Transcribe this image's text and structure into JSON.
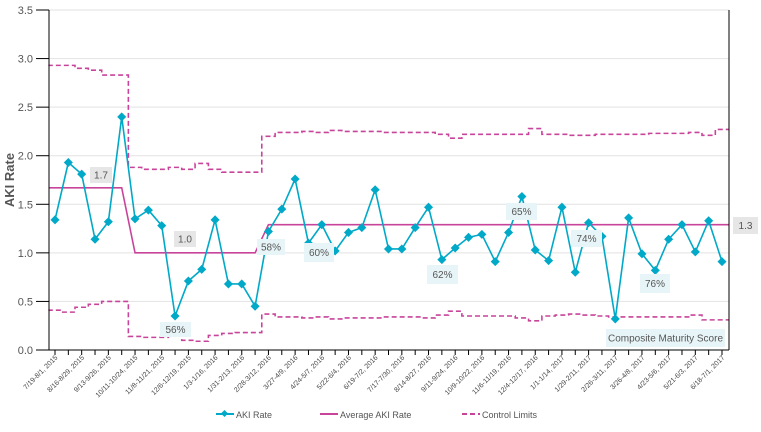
{
  "chart_data": {
    "type": "line",
    "title": "",
    "xlabel": "",
    "ylabel": "AKI Rate",
    "ylim": [
      0,
      3.5
    ],
    "yticks": [
      "0.0",
      "0.5",
      "1.0",
      "1.5",
      "2.0",
      "2.5",
      "3.0",
      "3.5"
    ],
    "grid": true,
    "legend_position": "bottom",
    "x_tick_labels": [
      "7/19-8/1, 2015",
      "8/16-8/29, 2015",
      "9/13-9/26, 2015",
      "10/11-10/24, 2015",
      "11/8-11/21, 2015",
      "12/6-12/19, 2015",
      "1/3-1/16, 2016",
      "1/31-2/13, 2016",
      "2/28-3/12, 2016",
      "3/27-4/9, 2016",
      "4/24-5/7, 2016",
      "5/22-6/4, 2016",
      "6/19-7/2, 2016",
      "7/17-7/30, 2016",
      "8/14-8/27, 2016",
      "9/11-9/24, 2016",
      "10/9-10/22, 2016",
      "11/6-11/19, 2016",
      "12/4-12/17, 2016",
      "1/1-1/14, 2017",
      "1/29-2/11, 2017",
      "2/26-3/11, 2017",
      "3/26-4/8, 2017",
      "4/23-5/6, 2017",
      "5/21-6/3, 2017",
      "6/18-7/1, 2017"
    ],
    "series": [
      {
        "name": "AKI Rate",
        "color": "#00a9c8",
        "style": "line-diamond",
        "values": [
          1.34,
          1.93,
          1.81,
          1.14,
          1.32,
          2.4,
          1.35,
          1.44,
          1.28,
          0.35,
          0.71,
          0.83,
          1.34,
          0.68,
          0.68,
          0.45,
          1.22,
          1.45,
          1.76,
          1.1,
          1.29,
          1.02,
          1.21,
          1.26,
          1.65,
          1.04,
          1.04,
          1.26,
          1.47,
          0.93,
          1.05,
          1.16,
          1.19,
          0.91,
          1.21,
          1.58,
          1.03,
          0.92,
          1.47,
          0.8,
          1.31,
          1.17,
          0.32,
          1.36,
          0.99,
          0.82,
          1.14,
          1.29,
          1.01,
          1.33,
          0.91
        ]
      },
      {
        "name": "Average AKI Rate",
        "color": "#c8449a",
        "style": "solid",
        "values": [
          1.67,
          1.67,
          1.67,
          1.67,
          1.67,
          1.67,
          1.0,
          1.0,
          1.0,
          1.0,
          1.0,
          1.0,
          1.0,
          1.0,
          1.0,
          1.0,
          1.29,
          1.29,
          1.29,
          1.29,
          1.29,
          1.29,
          1.29,
          1.29,
          1.29,
          1.29,
          1.29,
          1.29,
          1.29,
          1.29,
          1.29,
          1.29,
          1.29,
          1.29,
          1.29,
          1.29,
          1.29,
          1.29,
          1.29,
          1.29,
          1.29,
          1.29,
          1.29,
          1.29,
          1.29,
          1.29,
          1.29,
          1.29,
          1.29,
          1.29,
          1.29
        ]
      },
      {
        "name": "Control Limits",
        "color": "#c8449a",
        "style": "dashed",
        "upper": [
          2.93,
          2.93,
          2.9,
          2.88,
          2.83,
          2.83,
          1.88,
          1.86,
          1.86,
          1.88,
          1.86,
          1.92,
          1.86,
          1.83,
          1.83,
          1.83,
          2.2,
          2.24,
          2.24,
          2.25,
          2.24,
          2.26,
          2.25,
          2.25,
          2.25,
          2.24,
          2.24,
          2.24,
          2.24,
          2.22,
          2.18,
          2.22,
          2.22,
          2.22,
          2.22,
          2.22,
          2.28,
          2.22,
          2.22,
          2.21,
          2.21,
          2.22,
          2.22,
          2.22,
          2.22,
          2.23,
          2.23,
          2.23,
          2.24,
          2.21,
          2.27
        ],
        "lower": [
          0.41,
          0.39,
          0.44,
          0.47,
          0.5,
          0.5,
          0.14,
          0.13,
          0.13,
          0.17,
          0.1,
          0.09,
          0.15,
          0.17,
          0.18,
          0.18,
          0.37,
          0.34,
          0.34,
          0.33,
          0.34,
          0.32,
          0.33,
          0.33,
          0.33,
          0.34,
          0.34,
          0.34,
          0.33,
          0.36,
          0.4,
          0.35,
          0.35,
          0.35,
          0.35,
          0.33,
          0.3,
          0.35,
          0.36,
          0.37,
          0.36,
          0.35,
          0.34,
          0.34,
          0.34,
          0.34,
          0.34,
          0.34,
          0.36,
          0.31,
          0.31
        ]
      }
    ],
    "average_labels": [
      "1.7",
      "1.0",
      "1.3"
    ],
    "annotations": [
      "56%",
      "58%",
      "60%",
      "62%",
      "65%",
      "74%",
      "76%",
      "Composite Maturity Score"
    ]
  }
}
